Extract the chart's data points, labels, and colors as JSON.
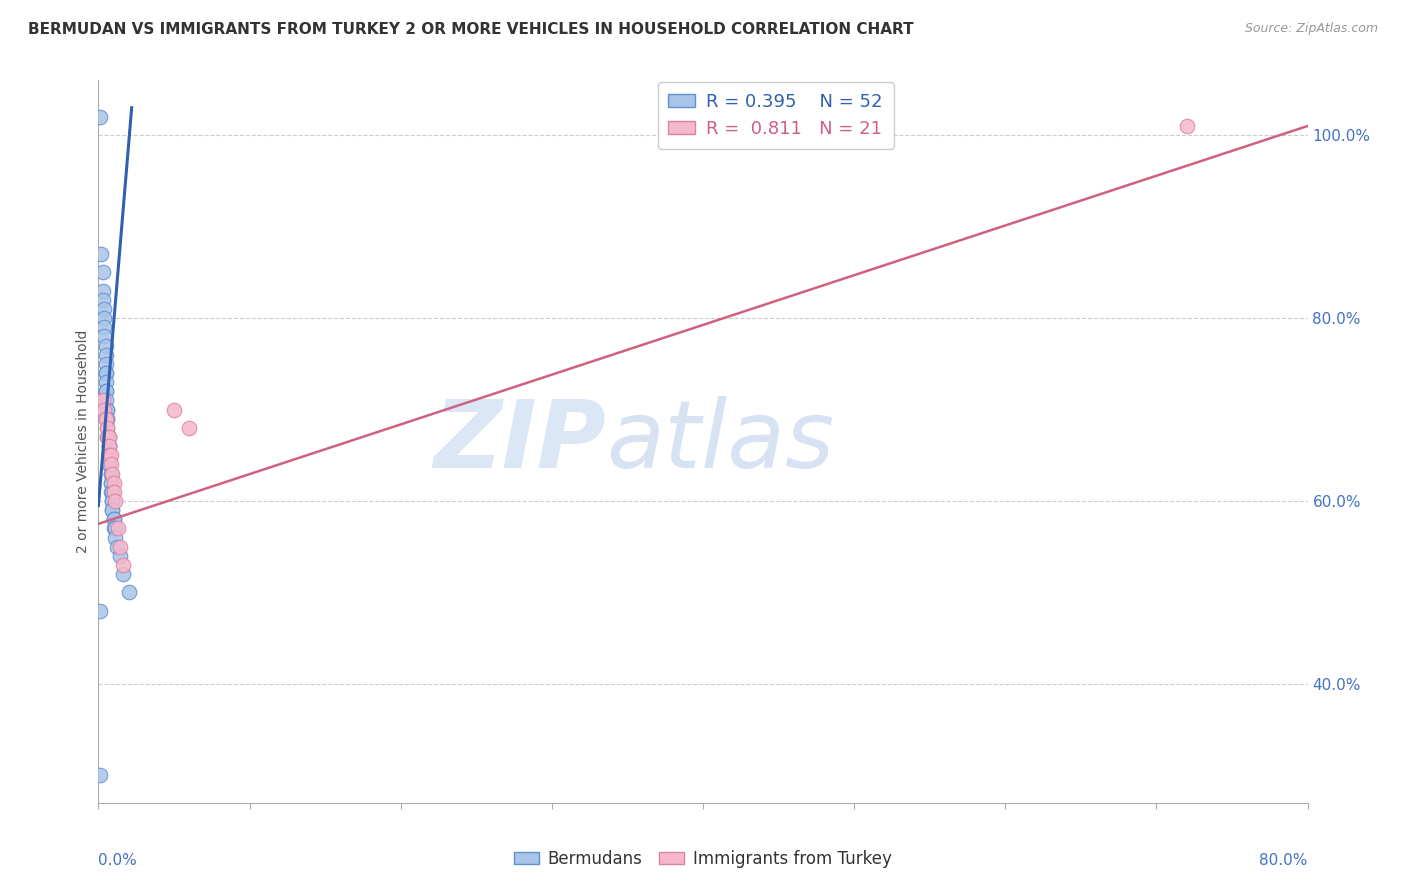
{
  "title": "BERMUDAN VS IMMIGRANTS FROM TURKEY 2 OR MORE VEHICLES IN HOUSEHOLD CORRELATION CHART",
  "source": "Source: ZipAtlas.com",
  "ylabel": "2 or more Vehicles in Household",
  "right_yticks": [
    "100.0%",
    "80.0%",
    "60.0%",
    "40.0%"
  ],
  "right_ytick_vals": [
    1.0,
    0.8,
    0.6,
    0.4
  ],
  "legend_label_blue": "Bermudans",
  "legend_label_pink": "Immigrants from Turkey",
  "watermark_zip": "ZIP",
  "watermark_atlas": "atlas",
  "blue_color": "#a8c4e8",
  "blue_edge_color": "#6090d0",
  "blue_line_color": "#3060b0",
  "pink_color": "#f5b8cc",
  "pink_edge_color": "#e080a0",
  "pink_line_color": "#d06080",
  "blue_x": [
    0.001,
    0.001,
    0.002,
    0.003,
    0.003,
    0.003,
    0.004,
    0.004,
    0.004,
    0.004,
    0.005,
    0.005,
    0.005,
    0.005,
    0.005,
    0.005,
    0.005,
    0.005,
    0.005,
    0.006,
    0.006,
    0.006,
    0.006,
    0.006,
    0.006,
    0.007,
    0.007,
    0.007,
    0.007,
    0.007,
    0.007,
    0.007,
    0.008,
    0.008,
    0.008,
    0.008,
    0.008,
    0.009,
    0.009,
    0.009,
    0.009,
    0.009,
    0.01,
    0.01,
    0.01,
    0.011,
    0.011,
    0.012,
    0.014,
    0.016,
    0.02,
    0.001
  ],
  "blue_y": [
    1.02,
    0.3,
    0.87,
    0.85,
    0.83,
    0.82,
    0.81,
    0.8,
    0.79,
    0.78,
    0.77,
    0.76,
    0.75,
    0.74,
    0.74,
    0.73,
    0.72,
    0.72,
    0.71,
    0.7,
    0.7,
    0.69,
    0.69,
    0.68,
    0.67,
    0.67,
    0.66,
    0.66,
    0.65,
    0.65,
    0.64,
    0.64,
    0.63,
    0.63,
    0.62,
    0.62,
    0.61,
    0.61,
    0.6,
    0.6,
    0.59,
    0.59,
    0.58,
    0.58,
    0.57,
    0.57,
    0.56,
    0.55,
    0.54,
    0.52,
    0.5,
    0.48
  ],
  "pink_x": [
    0.003,
    0.004,
    0.005,
    0.005,
    0.006,
    0.006,
    0.007,
    0.007,
    0.007,
    0.008,
    0.008,
    0.009,
    0.01,
    0.01,
    0.011,
    0.013,
    0.014,
    0.016,
    0.05,
    0.06,
    0.72
  ],
  "pink_y": [
    0.71,
    0.7,
    0.69,
    0.69,
    0.68,
    0.67,
    0.67,
    0.66,
    0.65,
    0.65,
    0.64,
    0.63,
    0.62,
    0.61,
    0.6,
    0.57,
    0.55,
    0.53,
    0.7,
    0.68,
    1.01
  ],
  "blue_line_x": [
    0.0,
    0.022
  ],
  "blue_line_y": [
    0.595,
    1.03
  ],
  "pink_line_x": [
    0.0,
    0.8
  ],
  "pink_line_y": [
    0.575,
    1.01
  ],
  "xlim": [
    0.0,
    0.8
  ],
  "ylim": [
    0.27,
    1.06
  ]
}
